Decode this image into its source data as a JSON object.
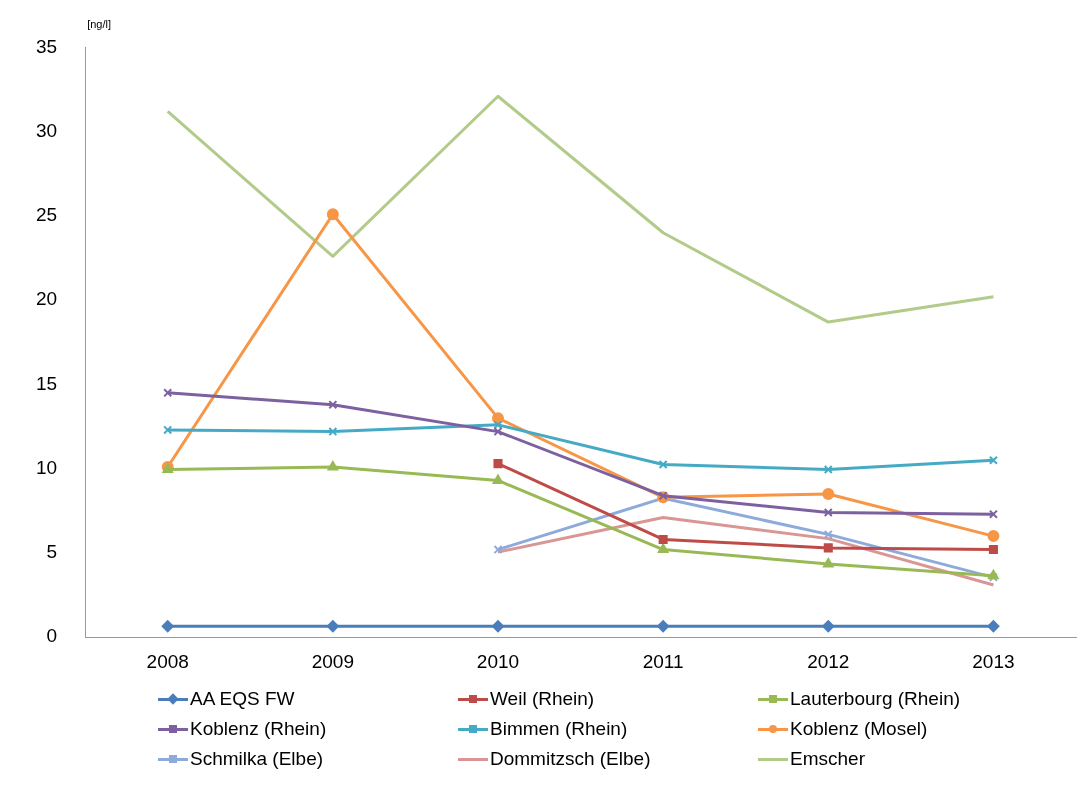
{
  "chart_data": {
    "type": "line",
    "ylabel": "[ng/l]",
    "categories": [
      "2008",
      "2009",
      "2010",
      "2011",
      "2012",
      "2013"
    ],
    "ylim": [
      0,
      35
    ],
    "yticks": [
      0,
      5,
      10,
      15,
      20,
      25,
      30,
      35
    ],
    "grid": false,
    "legend": "bottom",
    "line_style": "solid",
    "series": [
      {
        "name": "AA EQS FW",
        "color": "#4a7ebb",
        "marker": "diamond",
        "values": [
          0.65,
          0.65,
          0.65,
          0.65,
          0.65,
          0.65
        ]
      },
      {
        "name": "Weil (Rhein)",
        "color": "#be4b48",
        "marker": "square",
        "values": [
          null,
          null,
          10.3,
          5.8,
          5.3,
          5.2
        ]
      },
      {
        "name": "Lauterbourg (Rhein)",
        "color": "#98b954",
        "marker": "triangle",
        "values": [
          9.95,
          10.1,
          9.3,
          5.2,
          4.35,
          3.65
        ]
      },
      {
        "name": "Koblenz (Rhein)",
        "color": "#7d60a0",
        "marker": "cross",
        "values": [
          14.5,
          13.8,
          12.2,
          8.4,
          7.4,
          7.3
        ]
      },
      {
        "name": "Bimmen (Rhein)",
        "color": "#46aac5",
        "marker": "cross",
        "values": [
          12.3,
          12.2,
          12.6,
          10.25,
          9.95,
          10.5
        ]
      },
      {
        "name": "Koblenz (Mosel)",
        "color": "#f79646",
        "marker": "circle",
        "values": [
          10.1,
          25.1,
          13.0,
          8.3,
          8.5,
          6.0
        ]
      },
      {
        "name": "Schmilka (Elbe)",
        "color": "#8eaadb",
        "marker": "cross",
        "values": [
          null,
          null,
          5.2,
          8.25,
          6.1,
          3.55
        ]
      },
      {
        "name": "Dommitzsch (Elbe)",
        "color": "#d99694",
        "marker": "none",
        "values": [
          null,
          null,
          5.05,
          7.1,
          5.85,
          3.1
        ]
      },
      {
        "name": "Emscher",
        "color": "#b3cb8a",
        "marker": "none",
        "values": [
          31.2,
          22.6,
          32.1,
          24.0,
          18.7,
          20.2
        ]
      }
    ]
  }
}
